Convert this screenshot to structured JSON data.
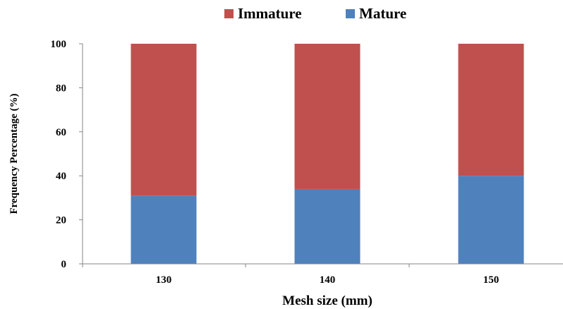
{
  "chart_data": {
    "type": "bar",
    "stacked": true,
    "title": "",
    "xlabel": "Mesh size (mm)",
    "ylabel": "Frequency Percentage (%)",
    "categories": [
      "130",
      "140",
      "150"
    ],
    "series": [
      {
        "name": "Mature",
        "color": "#4f81bd",
        "values": [
          31,
          34,
          40
        ]
      },
      {
        "name": "Immature",
        "color": "#c0504d",
        "values": [
          69,
          66,
          60
        ]
      }
    ],
    "ylim": [
      0,
      100
    ],
    "yticks": [
      "0",
      "20",
      "40",
      "60",
      "80",
      "100"
    ],
    "grid": false,
    "legend": {
      "position": "top",
      "items": [
        "Immature",
        "Mature"
      ]
    }
  }
}
